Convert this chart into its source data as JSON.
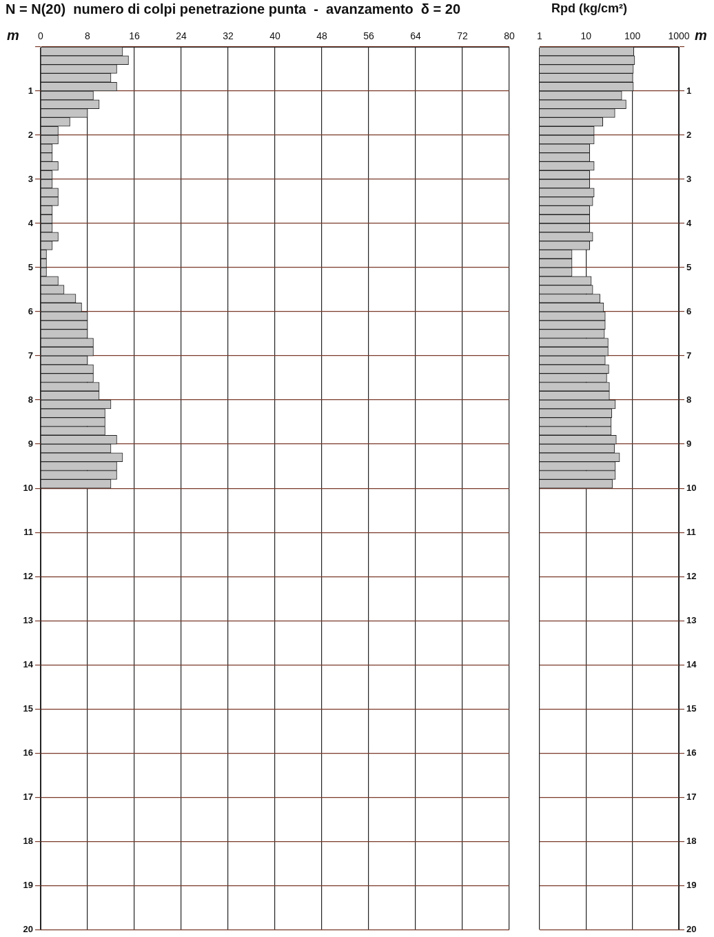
{
  "chart_data": [
    {
      "type": "bar",
      "orientation": "horizontal",
      "title": "N = N(20)  numero di colpi penetrazione punta  -  avanzamento  δ = 20",
      "ylabel": "m",
      "x": [
        0.1,
        0.3,
        0.5,
        0.7,
        0.9,
        1.1,
        1.3,
        1.5,
        1.7,
        1.9,
        2.1,
        2.3,
        2.5,
        2.7,
        2.9,
        3.1,
        3.3,
        3.5,
        3.7,
        3.9,
        4.1,
        4.3,
        4.5,
        4.7,
        4.9,
        5.1,
        5.3,
        5.5,
        5.7,
        5.9,
        6.1,
        6.3,
        6.5,
        6.7,
        6.9,
        7.1,
        7.3,
        7.5,
        7.7,
        7.9,
        8.1,
        8.3,
        8.5,
        8.7,
        8.9,
        9.1,
        9.3,
        9.5,
        9.7,
        9.9
      ],
      "values": [
        14,
        15,
        13,
        12,
        13,
        9,
        10,
        8,
        5,
        3,
        3,
        2,
        2,
        3,
        2,
        2,
        3,
        3,
        2,
        2,
        2,
        3,
        2,
        1,
        1,
        1,
        3,
        4,
        6,
        7,
        8,
        8,
        8,
        9,
        9,
        8,
        9,
        9,
        10,
        10,
        12,
        11,
        11,
        11,
        13,
        12,
        14,
        13,
        13,
        12
      ],
      "color": "#c4c4c4",
      "xlim": [
        0,
        80
      ],
      "xticks": [
        0,
        8,
        16,
        24,
        32,
        40,
        48,
        56,
        64,
        72,
        80
      ],
      "ylim": [
        20,
        0
      ],
      "yticks": [
        {
          "value": 0,
          "label": null
        },
        1,
        2,
        3,
        4,
        5,
        6,
        7,
        8,
        9,
        10,
        11,
        12,
        13,
        14,
        15,
        16,
        17,
        18,
        19,
        20
      ],
      "grid": true
    },
    {
      "type": "bar",
      "orientation": "horizontal",
      "title": "Rpd (kg/cm²)",
      "ylabel": "m",
      "x": [
        0.1,
        0.3,
        0.5,
        0.7,
        0.9,
        1.1,
        1.3,
        1.5,
        1.7,
        1.9,
        2.1,
        2.3,
        2.5,
        2.7,
        2.9,
        3.1,
        3.3,
        3.5,
        3.7,
        3.9,
        4.1,
        4.3,
        4.5,
        4.7,
        4.9,
        5.1,
        5.3,
        5.5,
        5.7,
        5.9,
        6.1,
        6.3,
        6.5,
        6.7,
        6.9,
        7.1,
        7.3,
        7.5,
        7.7,
        7.9,
        8.1,
        8.3,
        8.5,
        8.7,
        8.9,
        9.1,
        9.3,
        9.5,
        9.7,
        9.9
      ],
      "values": [
        107,
        112,
        105,
        102,
        105,
        59,
        73,
        42,
        23,
        15,
        15,
        12,
        12,
        15,
        12,
        12,
        15,
        14,
        12,
        12,
        12,
        14,
        12,
        5,
        5,
        5,
        13,
        14,
        20,
        24,
        26,
        26,
        25,
        30,
        30,
        26,
        31,
        28,
        32,
        32,
        43,
        36,
        35,
        35,
        45,
        41,
        53,
        43,
        43,
        37
      ],
      "color": "#c4c4c4",
      "log": "x",
      "xlim": [
        1,
        1000
      ],
      "xticks": [
        1,
        10,
        100,
        1000
      ],
      "ylim": [
        20,
        0
      ],
      "yticks": [
        {
          "value": 0,
          "label": null
        },
        1,
        2,
        3,
        4,
        5,
        6,
        7,
        8,
        9,
        10,
        11,
        12,
        13,
        14,
        15,
        16,
        17,
        18,
        19,
        20
      ],
      "grid": true
    }
  ]
}
